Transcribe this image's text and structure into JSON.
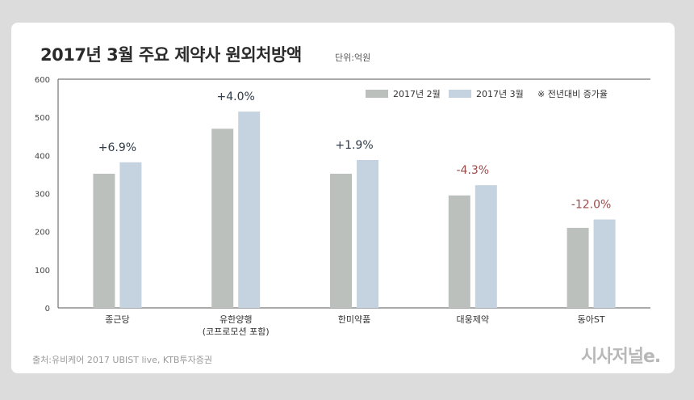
{
  "header": {
    "title": "2017년 3월 주요 제약사 원외처방액",
    "unit": "단위:억원"
  },
  "footer": {
    "source": "출처:유비케어 2017 UBIST live, KTB투자증권",
    "logo": "시사저널e."
  },
  "colors": {
    "feb": "#bcc0bd",
    "mar": "#c5d2df",
    "positive": "#2f3b48",
    "negative": "#9b4a4a",
    "axis": "#555555"
  },
  "chart_data": {
    "type": "bar",
    "categories": [
      "종근당",
      "유한양행\n(코프로모션 포함)",
      "한미약품",
      "대웅제약",
      "동아ST"
    ],
    "series": [
      {
        "name": "2017년 2월",
        "values": [
          352,
          470,
          352,
          295,
          210
        ]
      },
      {
        "name": "2017년 3월",
        "values": [
          382,
          515,
          388,
          322,
          232
        ]
      }
    ],
    "change_labels": [
      "+6.9%",
      "+4.0%",
      "+1.9%",
      "-4.3%",
      "-12.0%"
    ],
    "legend_note": "※ 전년대비 증가율",
    "ylim": [
      0,
      600
    ],
    "yticks": [
      0,
      100,
      200,
      300,
      400,
      500,
      600
    ],
    "grid": false,
    "legend_position": "top-right"
  }
}
